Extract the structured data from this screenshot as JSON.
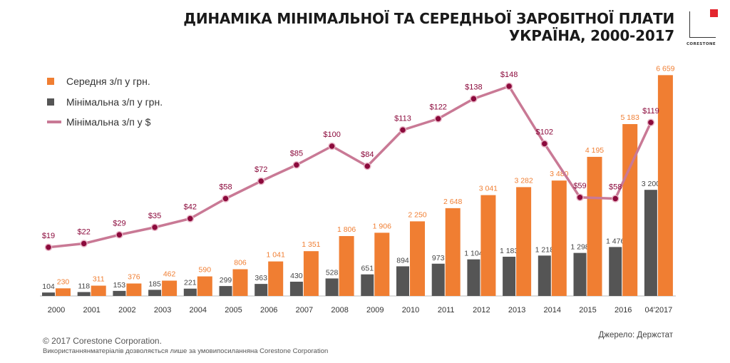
{
  "header": {
    "title_line1": "ДИНАМІКА МІНІМАЛЬНОЇ ТА СЕРЕДНЬОЇ ЗАРОБІТНОЇ ПЛАТИ",
    "title_line2": "УКРАЇНА, 2000-2017",
    "logo_text": "CORESTONE",
    "logo_accent": "#e3262e"
  },
  "footer": {
    "copyright": "© 2017 Corestone Corporation.",
    "note": "Використаннянматеріалів дозволяється лише за умовипосиланняна Corestone Corporation",
    "source": "Джерело: Держстат"
  },
  "colors": {
    "average": "#f07e32",
    "minimum": "#555555",
    "usd_line": "#c97995",
    "usd_point": "#8b0a3c",
    "usd_label": "#8b0a3c"
  },
  "chart_data": {
    "type": "bar",
    "categories": [
      "2000",
      "2001",
      "2002",
      "2003",
      "2004",
      "2005",
      "2006",
      "2007",
      "2008",
      "2009",
      "2010",
      "2011",
      "2012",
      "2013",
      "2014",
      "2015",
      "2016",
      "04'2017"
    ],
    "series": [
      {
        "name": "Середня з/п у грн.",
        "type": "bar",
        "values": [
          230,
          311,
          376,
          462,
          590,
          806,
          1041,
          1351,
          1806,
          1906,
          2250,
          2648,
          3041,
          3282,
          3480,
          4195,
          5183,
          6659
        ],
        "labels": [
          "230",
          "311",
          "376",
          "462",
          "590",
          "806",
          "1 041",
          "1 351",
          "1 806",
          "1 906",
          "2 250",
          "2 648",
          "3 041",
          "3 282",
          "3 480",
          "4 195",
          "5 183",
          "6 659"
        ]
      },
      {
        "name": "Мінімальна з/п у грн.",
        "type": "bar",
        "values": [
          104,
          118,
          153,
          185,
          221,
          299,
          363,
          430,
          528,
          651,
          894,
          973,
          1104,
          1183,
          1218,
          1298,
          1476,
          3200
        ],
        "labels": [
          "104",
          "118",
          "153",
          "185",
          "221",
          "299",
          "363",
          "430",
          "528",
          "651",
          "894",
          "973",
          "1 104",
          "1 183",
          "1 218",
          "1 298",
          "1 476",
          "3 200"
        ]
      },
      {
        "name": "Мінімальна з/п у $",
        "type": "line",
        "values": [
          19,
          22,
          29,
          35,
          42,
          58,
          72,
          85,
          100,
          84,
          113,
          122,
          138,
          148,
          102,
          59,
          58,
          119
        ],
        "labels": [
          "$19",
          "$22",
          "$29",
          "$35",
          "$42",
          "$58",
          "$72",
          "$85",
          "$100",
          "$84",
          "$113",
          "$122",
          "$138",
          "$148",
          "$102",
          "$59",
          "$58",
          "$119"
        ]
      }
    ],
    "legend": "top-left",
    "grid": false
  }
}
